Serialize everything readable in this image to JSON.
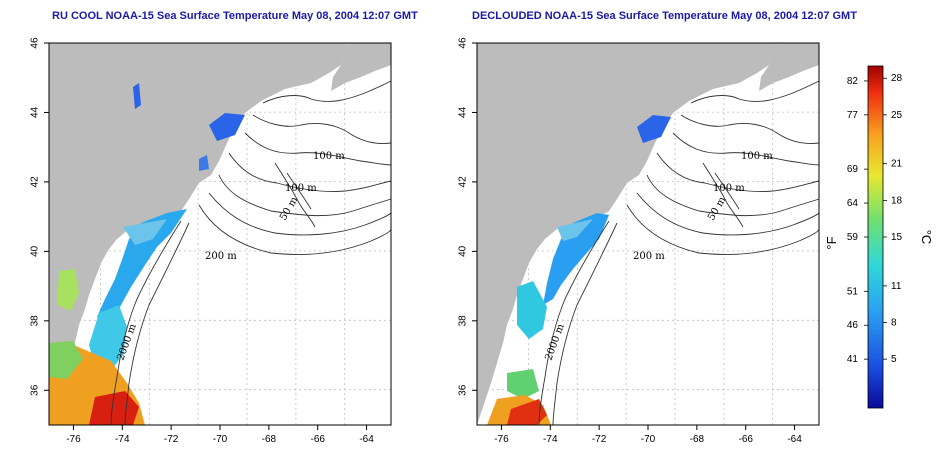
{
  "titles": {
    "left": "RU COOL NOAA-15 Sea Surface Temperature May 08, 2004 12:07 GMT",
    "right": "DECLOUDED NOAA-15 Sea Surface Temperature May 08, 2004 12:07 GMT"
  },
  "map": {
    "lon_range": [
      -77,
      -63
    ],
    "lat_range": [
      35,
      46
    ],
    "lon_ticks": [
      -76,
      -74,
      -72,
      -70,
      -68,
      -66,
      -64
    ],
    "lat_ticks": [
      36,
      38,
      40,
      42,
      44,
      46
    ],
    "contour_labels": [
      "100 m",
      "100 m",
      "50 m",
      "200 m",
      "2000 m"
    ]
  },
  "colorbar": {
    "fahrenheit_unit": "°F",
    "celsius_unit": "°C",
    "fahrenheit_ticks": [
      82,
      77,
      69,
      64,
      59,
      51,
      46,
      41
    ],
    "celsius_ticks": [
      28,
      25,
      21,
      18,
      15,
      11,
      8,
      5
    ],
    "range_c": [
      1,
      29
    ],
    "colors": [
      "#0a0a9a",
      "#1a4ee0",
      "#2aa0f0",
      "#30d8d8",
      "#70e070",
      "#e8e830",
      "#f8a020",
      "#f03010",
      "#a00000"
    ]
  },
  "colors": {
    "land": "#bcbcbc",
    "water": "#ffffff",
    "title": "#1a1aa8"
  }
}
